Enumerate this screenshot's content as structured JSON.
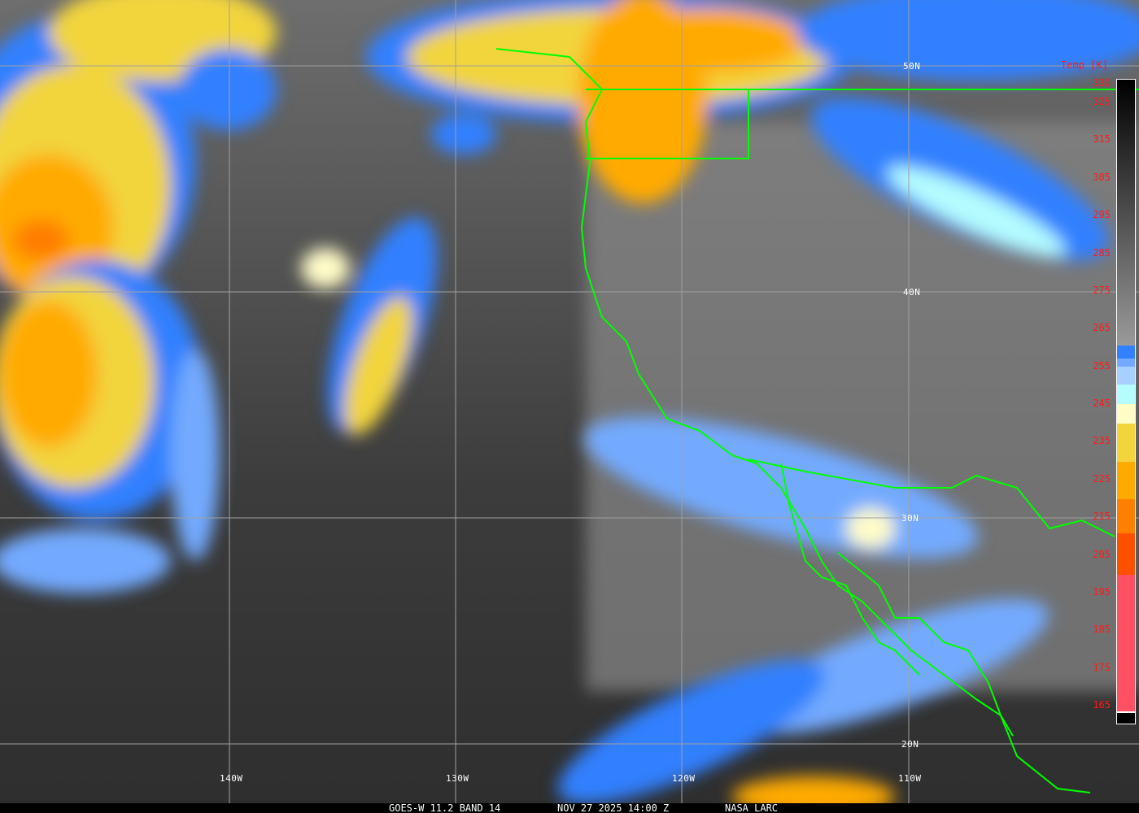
{
  "footer": {
    "satellite_band": "GOES-W 11.2 BAND 14",
    "datetime": "NOV 27 2025 14:00 Z",
    "source": "NASA LARC"
  },
  "latitude_labels": [
    "50N",
    "40N",
    "30N",
    "20N"
  ],
  "longitude_labels": [
    "140W",
    "130W",
    "120W",
    "110W"
  ],
  "colorbar": {
    "title": "Temp [K]",
    "ticks": [
      "330",
      "325",
      "315",
      "305",
      "295",
      "285",
      "275",
      "265",
      "255",
      "245",
      "235",
      "225",
      "215",
      "205",
      "195",
      "185",
      "175",
      "165"
    ],
    "range_k": [
      165,
      330
    ],
    "colors": {
      "warm_gradient": [
        "#000000",
        "#9a9a9a"
      ],
      "blue": "#3380ff",
      "light_blue": "#73aaff",
      "sky": "#a8d0ff",
      "pale_cyan": "#b4fcff",
      "cream": "#fffcc8",
      "yellow": "#f2d43c",
      "amber": "#ffaa00",
      "orange": "#ff7f00",
      "red_orange": "#ff5000",
      "pink": "#ff5064"
    }
  },
  "overlay_colors": {
    "boundaries": "#00ff00",
    "grid": "#a0a0a0",
    "labels": "#ffffff",
    "scale_labels": "#ff1a1a"
  }
}
